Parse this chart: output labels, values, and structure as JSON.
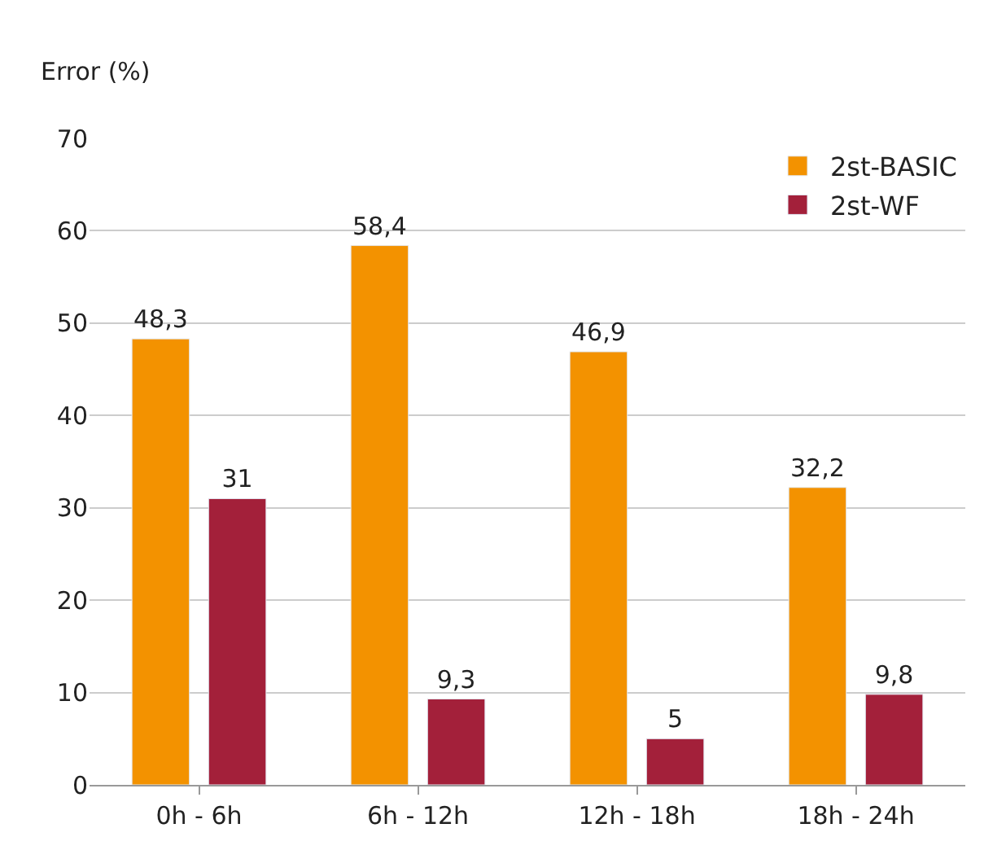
{
  "chart_data": {
    "type": "bar",
    "ylabel": "Error (%)",
    "categories": [
      "0h - 6h",
      "6h - 12h",
      "12h - 18h",
      "18h - 24h"
    ],
    "series": [
      {
        "name": "2st-BASIC",
        "color": "#f39200",
        "values": [
          48.3,
          58.4,
          46.9,
          32.2
        ],
        "value_labels": [
          "48,3",
          "58,4",
          "46,9",
          "32,2"
        ]
      },
      {
        "name": "2st-WF",
        "color": "#a3203a",
        "values": [
          31,
          9.3,
          5,
          9.8
        ],
        "value_labels": [
          "31",
          "9,3",
          "5",
          "9,8"
        ]
      }
    ],
    "ylim": [
      0,
      70
    ],
    "yticks": [
      0,
      10,
      20,
      30,
      40,
      50,
      60,
      70
    ],
    "grid": "y",
    "legend": "top right"
  }
}
